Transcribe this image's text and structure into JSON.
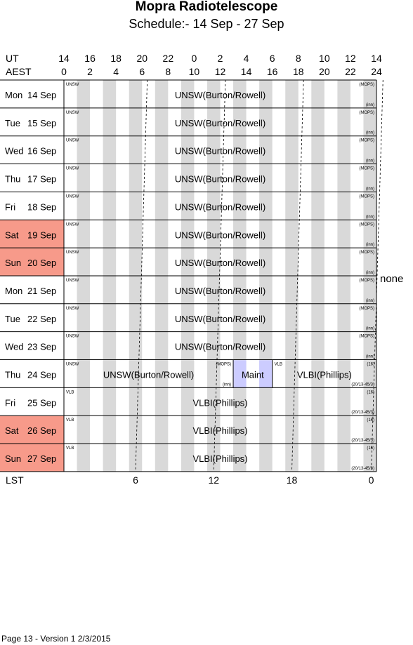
{
  "title": "Mopra Radiotelescope",
  "subtitle": "Schedule:- 14 Sep - 27 Sep",
  "footer": "Page 13 - Version 1  2/3/2015",
  "axes": {
    "ut_label": "UT",
    "aest_label": "AEST",
    "lst_label": "LST",
    "ut_ticks": [
      "14",
      "16",
      "18",
      "20",
      "22",
      "0",
      "2",
      "4",
      "6",
      "8",
      "10",
      "12",
      "14"
    ],
    "aest_ticks": [
      "0",
      "2",
      "4",
      "6",
      "8",
      "10",
      "12",
      "14",
      "16",
      "18",
      "20",
      "22",
      "24"
    ],
    "lst_ticks": [
      {
        "label": "6",
        "aest": 5.5
      },
      {
        "label": "12",
        "aest": 11.5
      },
      {
        "label": "18",
        "aest": 17.5
      },
      {
        "label": "0",
        "aest": 23.6
      }
    ]
  },
  "side_note": "none",
  "colors": {
    "weekend": "#f79a8a",
    "stripe": "#d9d9d9",
    "maint": "#ccccff",
    "grid": "#000000"
  },
  "days": [
    {
      "day": "Mon",
      "date": "14 Sep",
      "weekend": false
    },
    {
      "day": "Tue",
      "date": "15 Sep",
      "weekend": false
    },
    {
      "day": "Wed",
      "date": "16 Sep",
      "weekend": false
    },
    {
      "day": "Thu",
      "date": "17 Sep",
      "weekend": false
    },
    {
      "day": "Fri",
      "date": "18 Sep",
      "weekend": false
    },
    {
      "day": "Sat",
      "date": "19 Sep",
      "weekend": true
    },
    {
      "day": "Sun",
      "date": "20 Sep",
      "weekend": true
    },
    {
      "day": "Mon",
      "date": "21 Sep",
      "weekend": false
    },
    {
      "day": "Tue",
      "date": "22 Sep",
      "weekend": false
    },
    {
      "day": "Wed",
      "date": "23 Sep",
      "weekend": false
    },
    {
      "day": "Thu",
      "date": "24 Sep",
      "weekend": false
    },
    {
      "day": "Fri",
      "date": "25 Sep",
      "weekend": false
    },
    {
      "day": "Sat",
      "date": "26 Sep",
      "weekend": true
    },
    {
      "day": "Sun",
      "date": "27 Sep",
      "weekend": true
    }
  ],
  "rows": [
    {
      "blocks": [
        {
          "start": 0,
          "end": 24,
          "label": "UNSW(Burton/Rowell)",
          "tag": "UNSW",
          "corner_top": "(MOPS)",
          "corner_bottom": "(inn)"
        }
      ]
    },
    {
      "blocks": [
        {
          "start": 0,
          "end": 24,
          "label": "UNSW(Burton/Rowell)",
          "tag": "UNSW",
          "corner_top": "(MOPS)",
          "corner_bottom": "(inn)"
        }
      ]
    },
    {
      "blocks": [
        {
          "start": 0,
          "end": 24,
          "label": "UNSW(Burton/Rowell)",
          "tag": "UNSW",
          "corner_top": "(MOPS)",
          "corner_bottom": "(inn)"
        }
      ]
    },
    {
      "blocks": [
        {
          "start": 0,
          "end": 24,
          "label": "UNSW(Burton/Rowell)",
          "tag": "UNSW",
          "corner_top": "(MOPS)",
          "corner_bottom": "(inn)"
        }
      ]
    },
    {
      "blocks": [
        {
          "start": 0,
          "end": 24,
          "label": "UNSW(Burton/Rowell)",
          "tag": "UNSW",
          "corner_top": "(MOPS)",
          "corner_bottom": "(inn)"
        }
      ]
    },
    {
      "blocks": [
        {
          "start": 0,
          "end": 24,
          "label": "UNSW(Burton/Rowell)",
          "tag": "UNSW",
          "corner_top": "(MOPS)",
          "corner_bottom": "(inn)"
        }
      ]
    },
    {
      "blocks": [
        {
          "start": 0,
          "end": 24,
          "label": "UNSW(Burton/Rowell)",
          "tag": "UNSW",
          "corner_top": "(MOPS)",
          "corner_bottom": "(inn)"
        }
      ]
    },
    {
      "blocks": [
        {
          "start": 0,
          "end": 24,
          "label": "UNSW(Burton/Rowell)",
          "tag": "UNSW",
          "corner_top": "(MOPS)",
          "corner_bottom": "(inn)"
        }
      ]
    },
    {
      "blocks": [
        {
          "start": 0,
          "end": 24,
          "label": "UNSW(Burton/Rowell)",
          "tag": "UNSW",
          "corner_top": "(MOPS)",
          "corner_bottom": "(inn)"
        }
      ]
    },
    {
      "blocks": [
        {
          "start": 0,
          "end": 24,
          "label": "UNSW(Burton/Rowell)",
          "tag": "UNSW",
          "corner_top": "(MOPS)",
          "corner_bottom": "(inn)"
        }
      ]
    },
    {
      "blocks": [
        {
          "start": 0,
          "end": 13,
          "label": "UNSW(Burton/Rowell)",
          "tag": "UNSW",
          "corner_top": "(MOPS)",
          "corner_bottom": "(inn)"
        },
        {
          "start": 13,
          "end": 16,
          "label": "Maint",
          "maint_spans": [
            [
              13,
              14
            ],
            [
              15,
              16
            ]
          ]
        },
        {
          "start": 16,
          "end": 24,
          "label": "VLBI(Phillips)",
          "tag": "VLB",
          "corner_top": "(16)",
          "corner_bottom": "(20/13-45/3)"
        }
      ]
    },
    {
      "blocks": [
        {
          "start": 0,
          "end": 24,
          "label": "VLBI(Phillips)",
          "tag": "VLB",
          "corner_top": "(16)",
          "corner_bottom": "(20/13-45/3)"
        }
      ]
    },
    {
      "blocks": [
        {
          "start": 0,
          "end": 24,
          "label": "VLBI(Phillips)",
          "tag": "VLB",
          "corner_top": "(16)",
          "corner_bottom": "(20/13-45/3)"
        }
      ]
    },
    {
      "blocks": [
        {
          "start": 0,
          "end": 24,
          "label": "VLBI(Phillips)",
          "tag": "VLB",
          "corner_top": "(16)",
          "corner_bottom": "(20/13-45/3)"
        }
      ]
    }
  ]
}
